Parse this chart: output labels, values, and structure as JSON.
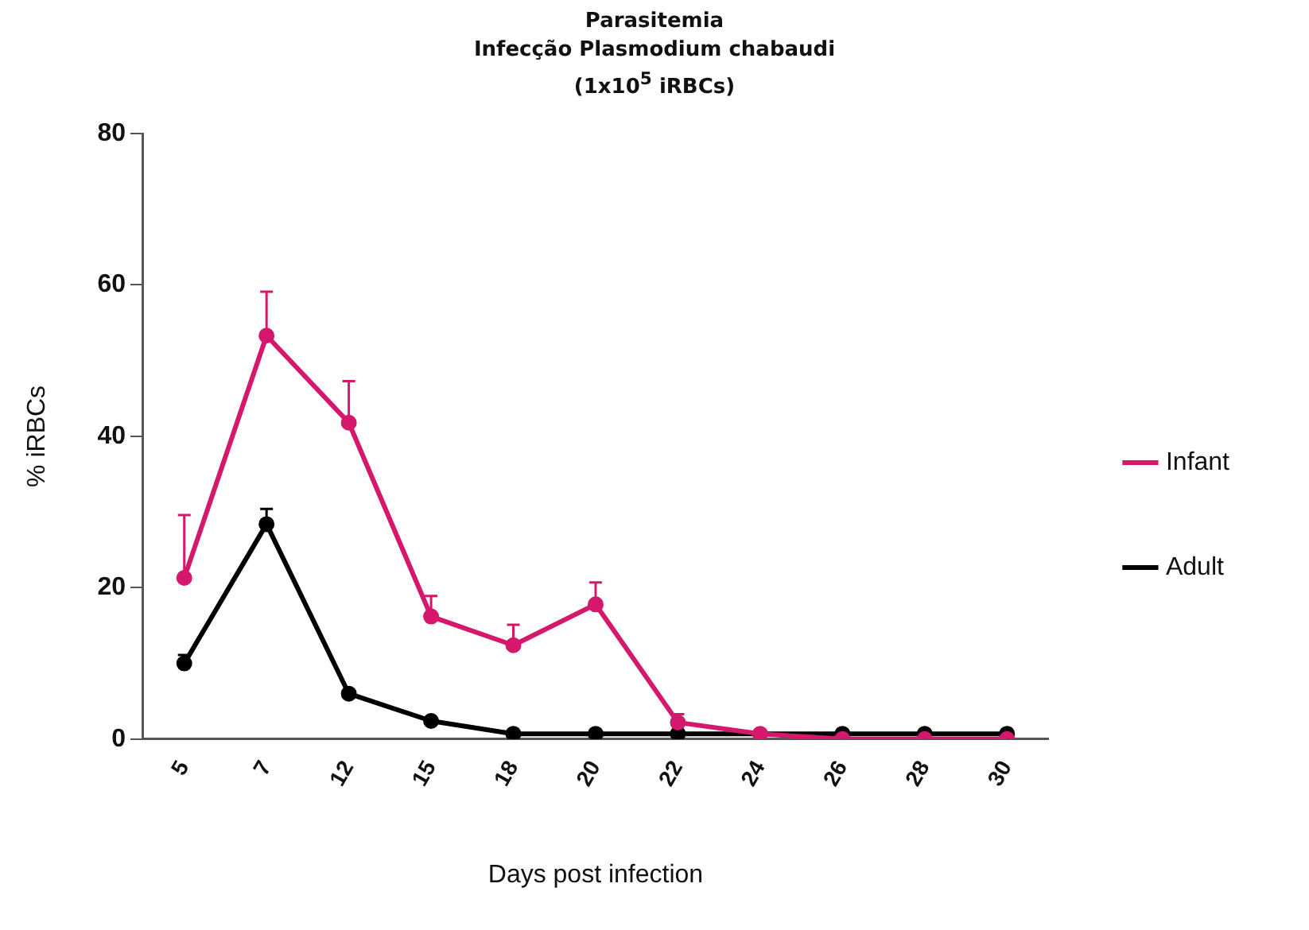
{
  "chart_data": {
    "type": "line",
    "title": "Parasitemia",
    "subtitle": "Infecção Plasmodium chabaudi (1x10$^{5}$ iRBCs)",
    "xlabel": "Days post infection",
    "ylabel": "% iRBCs",
    "categories": [
      "5",
      "7",
      "12",
      "15",
      "18",
      "20",
      "22",
      "24",
      "26",
      "28",
      "30"
    ],
    "series": [
      {
        "name": "Infant",
        "color": "#d4186c",
        "values": [
          21.3,
          53.3,
          41.8,
          16.2,
          12.4,
          17.8,
          2.2,
          0.7,
          0,
          0,
          0
        ],
        "errors": [
          [
            21.3,
            29.6
          ],
          [
            53.3,
            59.1
          ],
          [
            41.8,
            47.3
          ],
          [
            16.2,
            18.9
          ],
          [
            12.4,
            15.1
          ],
          [
            17.8,
            20.7
          ],
          [
            2.2,
            3.3
          ],
          null,
          null,
          null,
          null
        ]
      },
      {
        "name": "Adult",
        "color": "#000000",
        "values": [
          10,
          28.4,
          6,
          2.4,
          0.7,
          0.7,
          0.7,
          null,
          0.7,
          0.7,
          0.7
        ],
        "errors": [
          [
            10,
            11.1
          ],
          [
            28.4,
            30.4
          ],
          null,
          null,
          null,
          null,
          null,
          null,
          null,
          null,
          null
        ]
      }
    ],
    "ylim": [
      0,
      80
    ],
    "yticks": [
      0,
      20,
      40,
      60,
      80
    ],
    "grid": false,
    "legend": "right",
    "marker": "circle",
    "line_style": "solid"
  }
}
